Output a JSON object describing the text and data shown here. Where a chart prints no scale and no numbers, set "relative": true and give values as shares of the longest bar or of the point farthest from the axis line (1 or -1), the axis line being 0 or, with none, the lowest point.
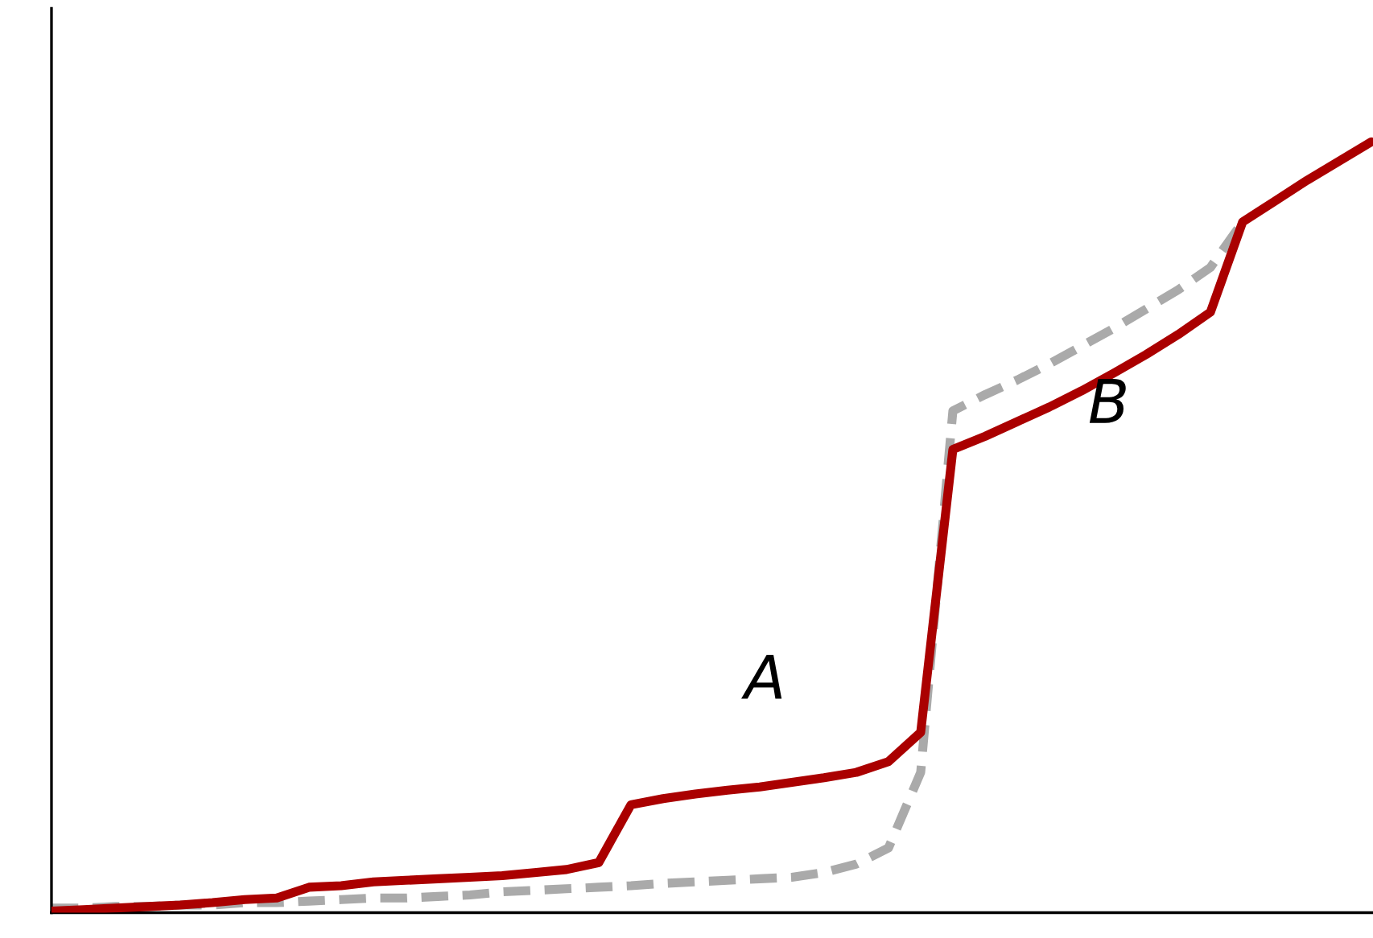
{
  "chart_data": {
    "type": "line",
    "relative": true,
    "categories": [
      null,
      null,
      null,
      null,
      null,
      null,
      null,
      null,
      null,
      null,
      null,
      null,
      null,
      null,
      null,
      null,
      null,
      null,
      null,
      null,
      null,
      null,
      null,
      null,
      null,
      null,
      null,
      null,
      null,
      null,
      null,
      null,
      null,
      null,
      null,
      null,
      null,
      null,
      null,
      null,
      null,
      null
    ],
    "series": [
      {
        "color": "#aa0000",
        "line_style": "solid",
        "values": [
          0.002,
          0.004,
          0.006,
          0.008,
          0.01,
          0.013,
          0.017,
          0.019,
          0.033,
          0.035,
          0.04,
          0.042,
          0.044,
          0.046,
          0.048,
          0.052,
          0.056,
          0.065,
          0.14,
          0.148,
          0.154,
          0.159,
          0.163,
          0.169,
          0.175,
          0.182,
          0.196,
          0.234,
          0.601,
          0.618,
          0.637,
          0.656,
          0.677,
          0.7,
          0.724,
          0.75,
          0.779,
          0.896,
          0.923,
          0.95,
          0.975,
          1.0
        ]
      },
      {
        "color": "#aaaaaa",
        "line_style": "dashed",
        "values": [
          0.006,
          0.006,
          0.008,
          0.008,
          0.01,
          0.01,
          0.013,
          0.013,
          0.015,
          0.017,
          0.019,
          0.019,
          0.021,
          0.023,
          0.027,
          0.029,
          0.031,
          0.033,
          0.035,
          0.038,
          0.04,
          0.042,
          0.044,
          0.046,
          0.052,
          0.063,
          0.084,
          0.182,
          0.651,
          0.672,
          0.691,
          0.712,
          0.735,
          0.758,
          0.783,
          0.808,
          0.837,
          0.896,
          null,
          null,
          null,
          null
        ]
      }
    ],
    "annotations": [
      "A",
      "B"
    ],
    "grid": false,
    "marker": "none"
  }
}
